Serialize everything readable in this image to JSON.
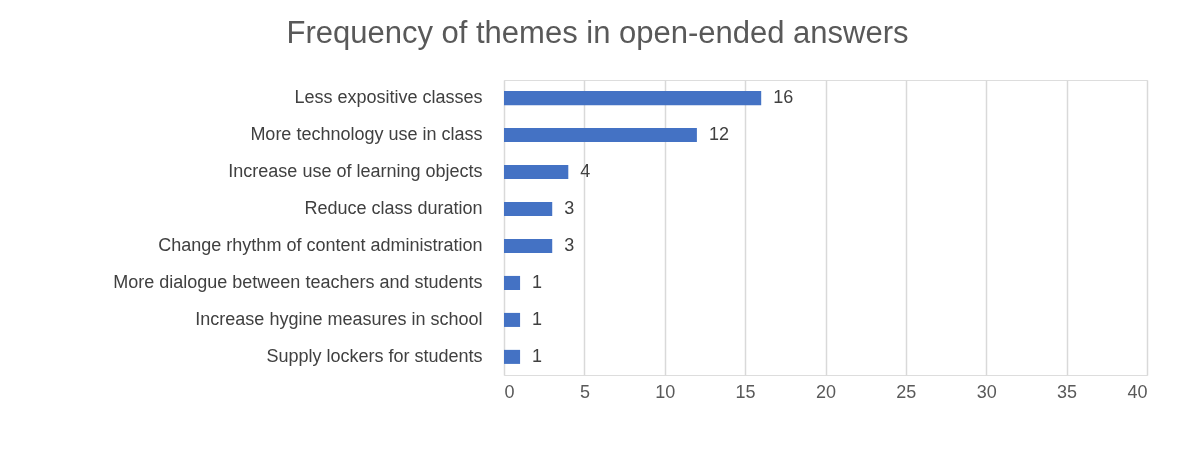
{
  "chart_data": {
    "type": "bar",
    "orientation": "horizontal",
    "title": "Frequency of themes in open-ended answers",
    "categories": [
      "Less expositive classes",
      "More technology use in class",
      "Increase use of learning objects",
      "Reduce class duration",
      "Change rhythm  of content administration",
      "More dialogue between teachers and students",
      "Increase hygine measures in school",
      "Supply lockers for students"
    ],
    "values": [
      16,
      12,
      4,
      3,
      3,
      1,
      1,
      1
    ],
    "color": "#4472c4",
    "xlim": [
      0,
      40
    ],
    "xticks": [
      0,
      5,
      10,
      15,
      20,
      25,
      30,
      35,
      40
    ],
    "grid": "x",
    "data_labels": true
  }
}
